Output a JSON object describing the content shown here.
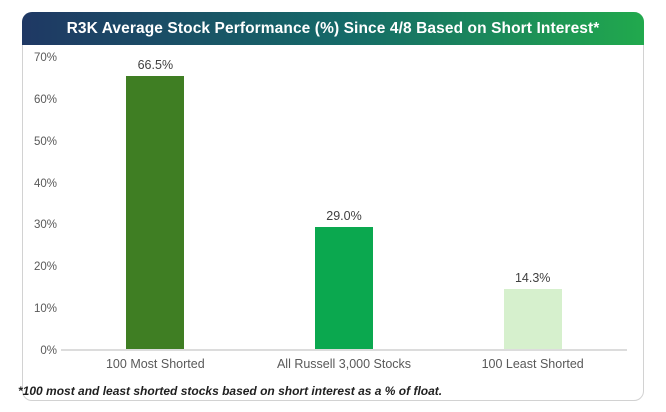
{
  "title": "R3K Average Stock Performance (%) Since 4/8 Based on Short Interest*",
  "footnote": "*100 most and least shorted stocks based on short interest as a % of float.",
  "colors": {
    "title_gradient_left": "#1F3864",
    "title_gradient_mid": "#156A68",
    "title_gradient_right": "#21A94D",
    "axis_text": "#595959",
    "baseline": "#dcdcdc",
    "card_border": "#d2d2d2"
  },
  "chart_data": {
    "type": "bar",
    "title": "R3K Average Stock Performance (%) Since 4/8 Based on Short Interest*",
    "categories": [
      "100 Most Shorted",
      "All Russell 3,000 Stocks",
      "100 Least Shorted"
    ],
    "values": [
      66.5,
      29.0,
      14.3
    ],
    "value_labels": [
      "66.5%",
      "29.0%",
      "14.3%"
    ],
    "bar_colors": [
      "#3F7E23",
      "#0BA84F",
      "#D6F0CD"
    ],
    "xlabel": "",
    "ylabel": "",
    "ylim": [
      0,
      70
    ],
    "ytick_step": 10,
    "ytick_labels": [
      "0%",
      "10%",
      "20%",
      "30%",
      "40%",
      "50%",
      "60%",
      "70%"
    ],
    "grid": false,
    "legend": false
  }
}
